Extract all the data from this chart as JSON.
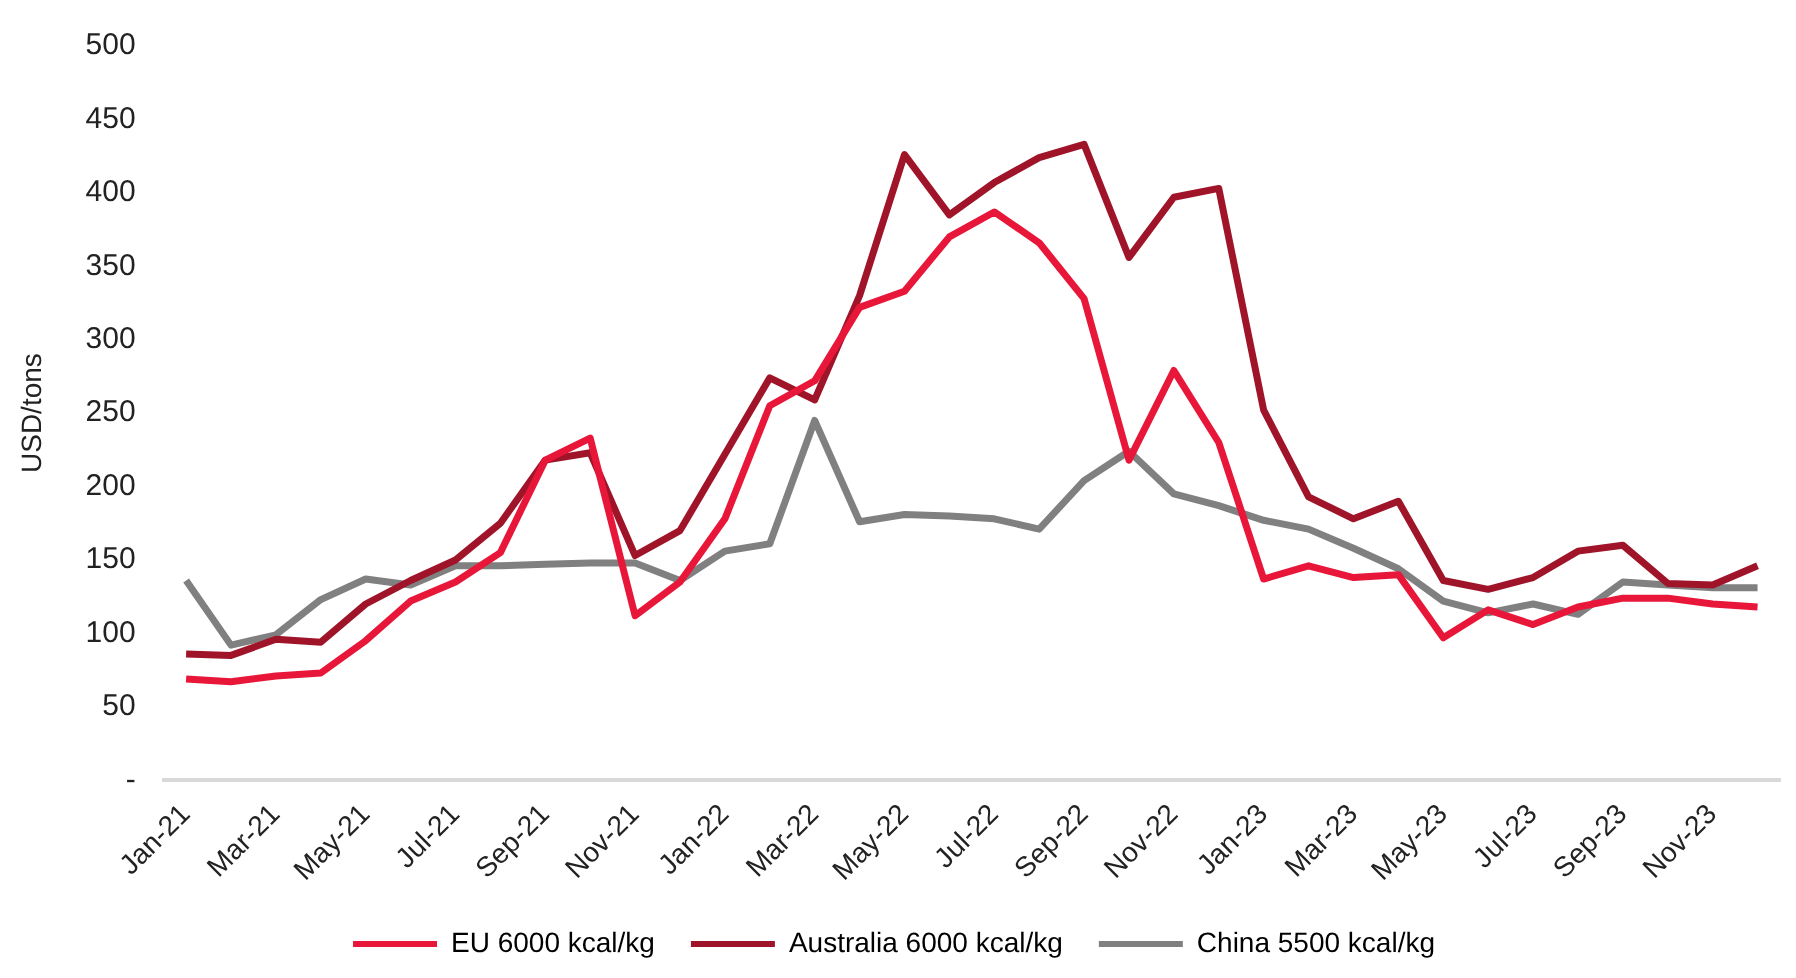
{
  "chart_data": {
    "type": "line",
    "ylabel": "USD/tons",
    "categories": [
      "Jan-21",
      null,
      "Mar-21",
      null,
      "May-21",
      null,
      "Jul-21",
      null,
      "Sep-21",
      null,
      "Nov-21",
      null,
      "Jan-22",
      null,
      "Mar-22",
      null,
      "May-22",
      null,
      "Jul-22",
      null,
      "Sep-22",
      null,
      "Nov-22",
      null,
      "Jan-23",
      null,
      "Mar-23",
      null,
      "May-23",
      null,
      "Jul-23",
      null,
      "Sep-23",
      null,
      "Nov-23",
      null
    ],
    "series": [
      {
        "name": "EU 6000 kcal/kg",
        "color": "#e8173a",
        "values": [
          69,
          67,
          71,
          73,
          95,
          122,
          135,
          155,
          218,
          233,
          112,
          135,
          178,
          255,
          272,
          322,
          333,
          370,
          387,
          366,
          328,
          218,
          279,
          230,
          137,
          146,
          138,
          140,
          97,
          116,
          106,
          118,
          124,
          124,
          120,
          118
        ]
      },
      {
        "name": "Australia 6000 kcal/kg",
        "color": "#a0142a",
        "values": [
          86,
          85,
          96,
          94,
          120,
          136,
          150,
          175,
          218,
          223,
          153,
          170,
          222,
          274,
          259,
          330,
          426,
          385,
          407,
          424,
          433,
          356,
          397,
          403,
          252,
          193,
          178,
          190,
          136,
          130,
          138,
          156,
          160,
          134,
          133,
          146
        ]
      },
      {
        "name": "China 5500 kcal/kg",
        "color": "#808080",
        "values": [
          136,
          92,
          99,
          123,
          137,
          133,
          146,
          146,
          147,
          148,
          148,
          136,
          156,
          161,
          245,
          176,
          181,
          180,
          178,
          171,
          204,
          224,
          195,
          187,
          177,
          171,
          158,
          144,
          122,
          114,
          120,
          113,
          135,
          133,
          131,
          131
        ]
      }
    ],
    "ylim": [
      0,
      500
    ],
    "yticks": [
      {
        "value": 0,
        "label": "-"
      },
      50,
      100,
      150,
      200,
      250,
      300,
      350,
      400,
      450,
      500
    ],
    "grid": false,
    "legend": "bottom",
    "marker": "none",
    "line_style": "solid"
  }
}
